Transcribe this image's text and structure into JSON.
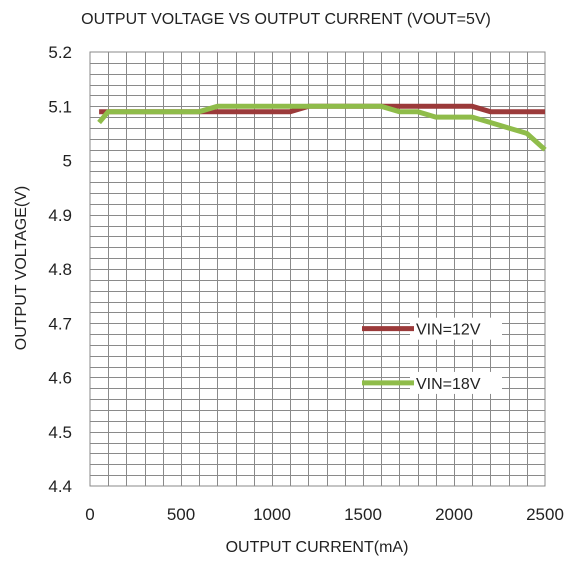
{
  "chart_data": {
    "type": "line",
    "title": "OUTPUT VOLTAGE VS OUTPUT CURRENT (VOUT=5V)",
    "xlabel": "OUTPUT CURRENT(mA)",
    "ylabel": "OUTPUT VOLTAGE(V)",
    "xlim": [
      0,
      2500
    ],
    "ylim": [
      4.4,
      5.2
    ],
    "x_ticks": [
      0,
      500,
      1000,
      1500,
      2000,
      2500
    ],
    "x_tick_labels": [
      "0",
      "500",
      "1000",
      "1500",
      "2000",
      "2500"
    ],
    "y_ticks": [
      5.2,
      5.1,
      5.0,
      4.9,
      4.8,
      4.7,
      4.6,
      4.5,
      4.4
    ],
    "y_tick_labels": [
      "5.2",
      "5.1",
      "5",
      "4.9",
      "4.8",
      "4.7",
      "4.6",
      "4.5",
      "4.4"
    ],
    "grid": true,
    "legend_position": "inside, lower-right",
    "series": [
      {
        "name": "VIN=12V",
        "color": "#9b3a3a",
        "x": [
          50,
          100,
          200,
          400,
          600,
          700,
          900,
          1100,
          1200,
          1400,
          1600,
          1700,
          1800,
          1900,
          2000,
          2100,
          2200,
          2300,
          2400,
          2500
        ],
        "y": [
          5.09,
          5.09,
          5.09,
          5.09,
          5.09,
          5.09,
          5.09,
          5.09,
          5.1,
          5.1,
          5.1,
          5.1,
          5.1,
          5.1,
          5.1,
          5.1,
          5.09,
          5.09,
          5.09,
          5.09
        ]
      },
      {
        "name": "VIN=18V",
        "color": "#8fbc4a",
        "x": [
          50,
          100,
          200,
          400,
          600,
          700,
          900,
          1100,
          1200,
          1400,
          1600,
          1700,
          1800,
          1900,
          2000,
          2100,
          2200,
          2300,
          2400,
          2500
        ],
        "y": [
          5.07,
          5.09,
          5.09,
          5.09,
          5.09,
          5.1,
          5.1,
          5.1,
          5.1,
          5.1,
          5.1,
          5.09,
          5.09,
          5.08,
          5.08,
          5.08,
          5.07,
          5.06,
          5.05,
          5.02
        ]
      }
    ]
  }
}
